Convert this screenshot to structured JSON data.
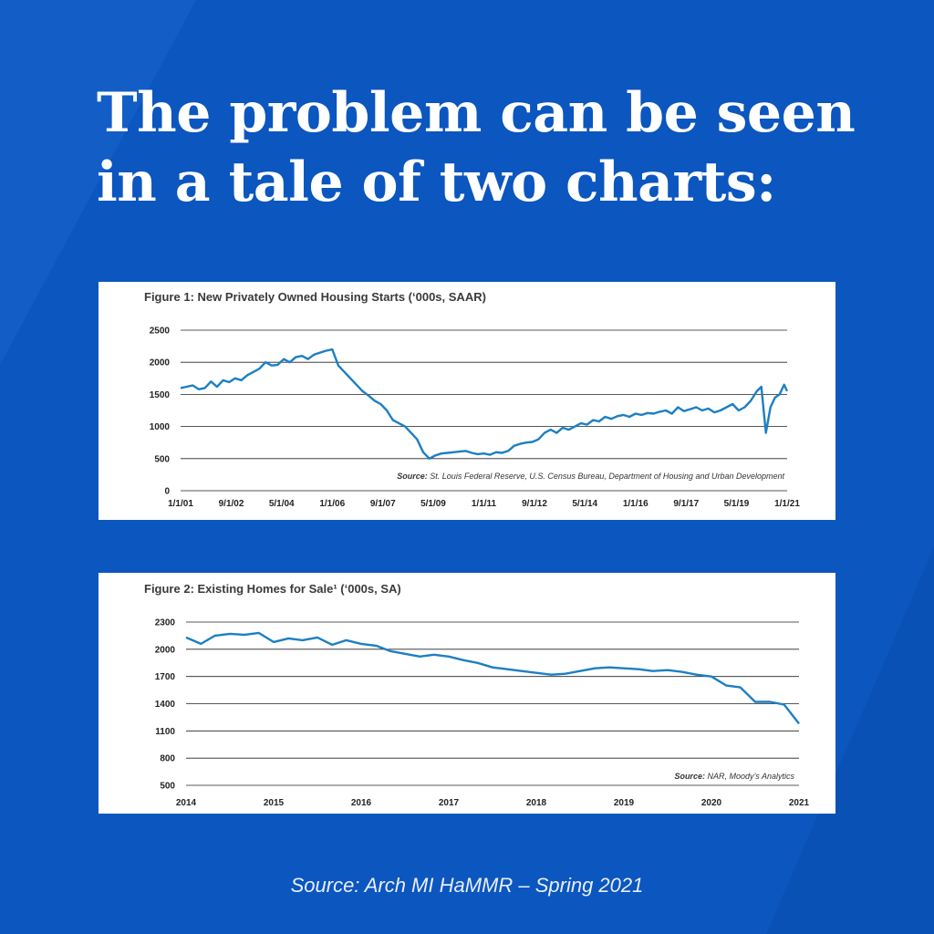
{
  "headline": "The problem can be seen in a tale of two charts:",
  "footer_source": "Source: Arch MI HaMMR – Spring 2021",
  "colors": {
    "background": "#0b56bf",
    "line": "#1c7fc4",
    "panel": "#ffffff"
  },
  "chart_data": [
    {
      "type": "line",
      "title": "Figure 1: New Privately Owned Housing Starts (‘000s, SAAR)",
      "source_label": "Source:",
      "source_text": "St. Louis Federal Reserve, U.S. Census Bureau, Department of Housing and Urban Development",
      "ylim": [
        0,
        2500
      ],
      "yticks": [
        0,
        500,
        1000,
        1500,
        2000,
        2500
      ],
      "xlim": [
        2001.0,
        2021.0
      ],
      "xticks": [
        {
          "label": "1/1/01",
          "pos": 2001.0
        },
        {
          "label": "9/1/02",
          "pos": 2002.67
        },
        {
          "label": "5/1/04",
          "pos": 2004.33
        },
        {
          "label": "1/1/06",
          "pos": 2006.0
        },
        {
          "label": "9/1/07",
          "pos": 2007.67
        },
        {
          "label": "5/1/09",
          "pos": 2009.33
        },
        {
          "label": "1/1/11",
          "pos": 2011.0
        },
        {
          "label": "9/1/12",
          "pos": 2012.67
        },
        {
          "label": "5/1/14",
          "pos": 2014.33
        },
        {
          "label": "1/1/16",
          "pos": 2016.0
        },
        {
          "label": "9/1/17",
          "pos": 2017.67
        },
        {
          "label": "5/1/19",
          "pos": 2019.33
        },
        {
          "label": "1/1/21",
          "pos": 2021.0
        }
      ],
      "grid": true,
      "series": [
        {
          "x": [
            2001.0,
            2001.2,
            2001.4,
            2001.6,
            2001.8,
            2002.0,
            2002.2,
            2002.4,
            2002.6,
            2002.8,
            2003.0,
            2003.2,
            2003.4,
            2003.6,
            2003.8,
            2004.0,
            2004.2,
            2004.4,
            2004.6,
            2004.8,
            2005.0,
            2005.2,
            2005.4,
            2005.6,
            2005.8,
            2006.0,
            2006.2,
            2006.4,
            2006.6,
            2006.8,
            2007.0,
            2007.2,
            2007.4,
            2007.6,
            2007.8,
            2008.0,
            2008.2,
            2008.4,
            2008.6,
            2008.8,
            2009.0,
            2009.2,
            2009.4,
            2009.6,
            2009.8,
            2010.0,
            2010.2,
            2010.4,
            2010.6,
            2010.8,
            2011.0,
            2011.2,
            2011.4,
            2011.6,
            2011.8,
            2012.0,
            2012.2,
            2012.4,
            2012.6,
            2012.8,
            2013.0,
            2013.2,
            2013.4,
            2013.6,
            2013.8,
            2014.0,
            2014.2,
            2014.4,
            2014.6,
            2014.8,
            2015.0,
            2015.2,
            2015.4,
            2015.6,
            2015.8,
            2016.0,
            2016.2,
            2016.4,
            2016.6,
            2016.8,
            2017.0,
            2017.2,
            2017.4,
            2017.6,
            2017.8,
            2018.0,
            2018.2,
            2018.4,
            2018.6,
            2018.8,
            2019.0,
            2019.2,
            2019.4,
            2019.6,
            2019.8,
            2020.0,
            2020.15,
            2020.3,
            2020.45,
            2020.6,
            2020.75,
            2020.9,
            2021.0
          ],
          "y": [
            1600,
            1620,
            1640,
            1580,
            1600,
            1700,
            1620,
            1720,
            1690,
            1750,
            1720,
            1800,
            1850,
            1900,
            2000,
            1950,
            1960,
            2050,
            2000,
            2080,
            2100,
            2050,
            2120,
            2150,
            2180,
            2200,
            1950,
            1850,
            1750,
            1650,
            1550,
            1480,
            1400,
            1350,
            1250,
            1100,
            1050,
            1000,
            900,
            800,
            600,
            500,
            550,
            580,
            590,
            600,
            610,
            620,
            590,
            570,
            580,
            560,
            600,
            590,
            620,
            700,
            730,
            750,
            760,
            800,
            900,
            950,
            900,
            980,
            950,
            1000,
            1050,
            1030,
            1100,
            1080,
            1150,
            1120,
            1160,
            1180,
            1150,
            1200,
            1180,
            1210,
            1200,
            1230,
            1250,
            1200,
            1300,
            1240,
            1270,
            1300,
            1250,
            1280,
            1220,
            1250,
            1300,
            1350,
            1250,
            1300,
            1400,
            1550,
            1620,
            900,
            1300,
            1450,
            1500,
            1650,
            1550
          ]
        }
      ]
    },
    {
      "type": "line",
      "title": "Figure 2: Existing Homes for Sale¹ (‘000s, SA)",
      "source_label": "Source:",
      "source_text": "NAR, Moody’s Analytics",
      "ylim": [
        500,
        2300
      ],
      "yticks": [
        500,
        800,
        1100,
        1400,
        1700,
        2000,
        2300
      ],
      "xlim": [
        2014.0,
        2021.0
      ],
      "xticks": [
        {
          "label": "2014",
          "pos": 2014.0
        },
        {
          "label": "2015",
          "pos": 2015.0
        },
        {
          "label": "2016",
          "pos": 2016.0
        },
        {
          "label": "2017",
          "pos": 2017.0
        },
        {
          "label": "2018",
          "pos": 2018.0
        },
        {
          "label": "2019",
          "pos": 2019.0
        },
        {
          "label": "2020",
          "pos": 2020.0
        },
        {
          "label": "2021",
          "pos": 2021.0
        }
      ],
      "grid": true,
      "series": [
        {
          "x": [
            2014.0,
            2014.17,
            2014.33,
            2014.5,
            2014.67,
            2014.83,
            2015.0,
            2015.17,
            2015.33,
            2015.5,
            2015.67,
            2015.83,
            2016.0,
            2016.17,
            2016.33,
            2016.5,
            2016.67,
            2016.83,
            2017.0,
            2017.17,
            2017.33,
            2017.5,
            2017.67,
            2017.83,
            2018.0,
            2018.17,
            2018.33,
            2018.5,
            2018.67,
            2018.83,
            2019.0,
            2019.17,
            2019.33,
            2019.5,
            2019.67,
            2019.83,
            2020.0,
            2020.17,
            2020.33,
            2020.5,
            2020.67,
            2020.83,
            2021.0
          ],
          "y": [
            2130,
            2060,
            2150,
            2170,
            2160,
            2180,
            2080,
            2120,
            2100,
            2130,
            2050,
            2100,
            2060,
            2040,
            1980,
            1950,
            1920,
            1940,
            1920,
            1880,
            1850,
            1800,
            1780,
            1760,
            1740,
            1720,
            1730,
            1760,
            1790,
            1800,
            1790,
            1780,
            1760,
            1770,
            1750,
            1720,
            1700,
            1600,
            1580,
            1420,
            1420,
            1390,
            1180
          ]
        }
      ]
    }
  ]
}
